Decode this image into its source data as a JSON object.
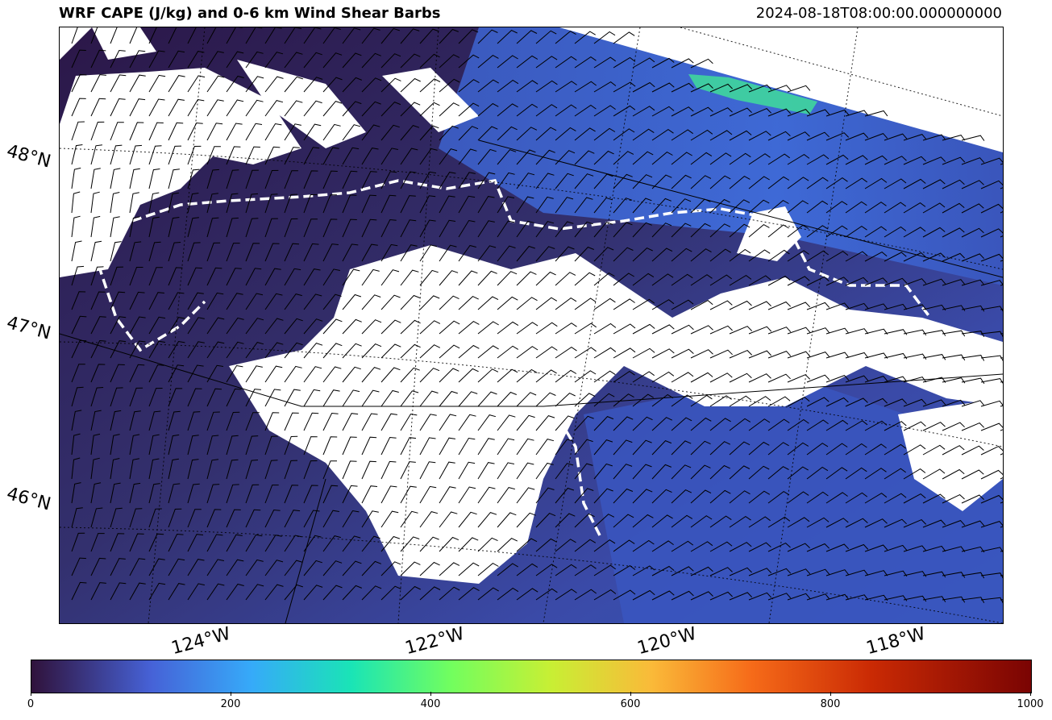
{
  "title": "WRF CAPE (J/kg) and 0-6 km Wind Shear Barbs",
  "valid_time": "2024-08-18T08:00:00.000000000",
  "lat_labels": [
    "48°N",
    "47°N",
    "46°N"
  ],
  "lon_labels": [
    "124°W",
    "122°W",
    "120°W",
    "118°W"
  ],
  "colorbar": {
    "ticks": [
      "0",
      "200",
      "400",
      "600",
      "800",
      "1000"
    ],
    "colors": [
      "#30123b",
      "#4662d7",
      "#36aaf9",
      "#1ae4b6",
      "#72fe5e",
      "#c8ef34",
      "#faba39",
      "#f66b19",
      "#ca2a04",
      "#7a0403"
    ]
  },
  "map": {
    "field": "CAPE",
    "overlay": "0-6 km wind shear barbs",
    "colors": {
      "low": "#2d1a4a",
      "mid": "#3a4fb0",
      "high_strip": "#3fdd9a",
      "no_data": "#ffffff"
    }
  }
}
